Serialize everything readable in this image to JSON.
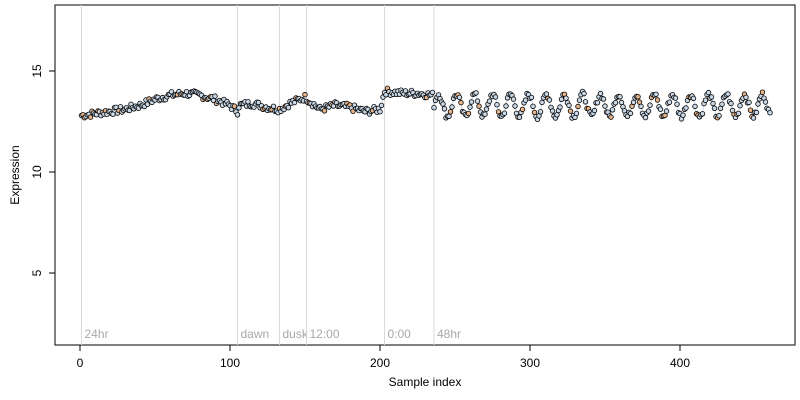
{
  "chart_data": {
    "type": "scatter",
    "xlabel": "Sample index",
    "ylabel": "Expression",
    "xlim": [
      0,
      460
    ],
    "ylim": [
      1.5,
      19.0
    ],
    "x_ticks": [
      0,
      100,
      200,
      300,
      400
    ],
    "y_ticks": [
      5,
      10,
      15
    ],
    "grid": false,
    "legend": "none",
    "vertical_markers": [
      {
        "x": 1,
        "label": "24hr"
      },
      {
        "x": 105,
        "label": "dawn"
      },
      {
        "x": 133,
        "label": "dusk"
      },
      {
        "x": 151,
        "label": "12:00"
      },
      {
        "x": 203,
        "label": "0:00"
      },
      {
        "x": 236,
        "label": "48hr"
      }
    ],
    "colors": {
      "marker_line": "#d9d9d9",
      "marker_text": "#a8a8a8",
      "point_edge": "#000000",
      "point_fill_light": "#c9d9e8",
      "point_fill_orange": "#e8b48a",
      "background_line": "#8fa8c8"
    },
    "series": [
      {
        "segment": "0-105",
        "anchors": [
          [
            1,
            12.8
          ],
          [
            10,
            12.9
          ],
          [
            20,
            13.0
          ],
          [
            30,
            13.1
          ],
          [
            40,
            13.3
          ],
          [
            50,
            13.6
          ],
          [
            60,
            13.8
          ],
          [
            70,
            13.9
          ],
          [
            80,
            13.8
          ],
          [
            90,
            13.6
          ],
          [
            100,
            13.3
          ],
          [
            105,
            13.0
          ]
        ]
      },
      {
        "segment": "105-235",
        "anchors": [
          [
            106,
            13.3
          ],
          [
            115,
            13.4
          ],
          [
            125,
            13.2
          ],
          [
            133,
            13.1
          ],
          [
            140,
            13.4
          ],
          [
            150,
            13.7
          ],
          [
            160,
            13.1
          ],
          [
            170,
            13.3
          ],
          [
            180,
            13.2
          ],
          [
            190,
            13.0
          ],
          [
            200,
            13.1
          ],
          [
            203,
            14.0
          ],
          [
            215,
            13.9
          ],
          [
            225,
            13.9
          ],
          [
            235,
            13.8
          ]
        ]
      },
      {
        "segment": "236-460",
        "oscillating": true,
        "center": 13.3,
        "amplitude": 0.55,
        "period_samples": 12,
        "x_range": [
          236,
          460
        ]
      }
    ]
  }
}
